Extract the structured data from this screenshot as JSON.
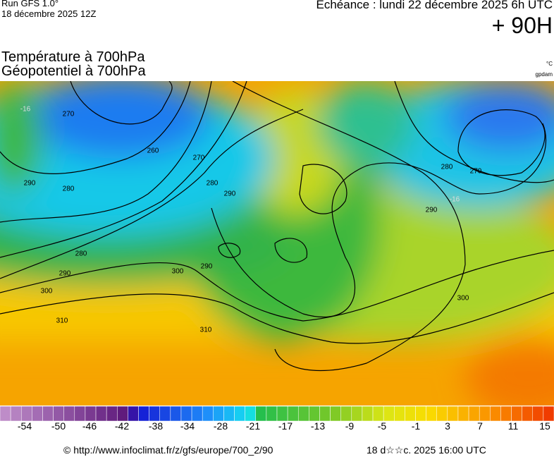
{
  "header": {
    "run": "Run GFS 1.0°",
    "run_date": "18 décembre 2025 12Z",
    "echeance": "Echéance : lundi 22 décembre 2025 6h UTC",
    "lead": "+ 90H",
    "title_temp": "Température à 700hPa",
    "title_geo": "Géopotentiel à 700hPa",
    "unit_temp": "°C",
    "unit_geo": "gpdam"
  },
  "map": {
    "contour_labels": [
      "-16",
      "270",
      "260",
      "270",
      "290",
      "280",
      "280",
      "290",
      "280",
      "290",
      "300",
      "300",
      "290",
      "310",
      "310",
      "280",
      "270",
      "-16",
      "290",
      "300"
    ]
  },
  "legend": {
    "labels": [
      "-54",
      "-50",
      "-46",
      "-42",
      "-38",
      "-34",
      "-28",
      "-21",
      "-17",
      "-13",
      "-9",
      "-5",
      "-1",
      "3",
      "7",
      "11",
      "15"
    ]
  },
  "footer": {
    "url": "© http://www.infoclimat.fr/z/gfs/europe/700_2/90",
    "date": "18 d☆☆c. 2025 16:00 UTC"
  }
}
